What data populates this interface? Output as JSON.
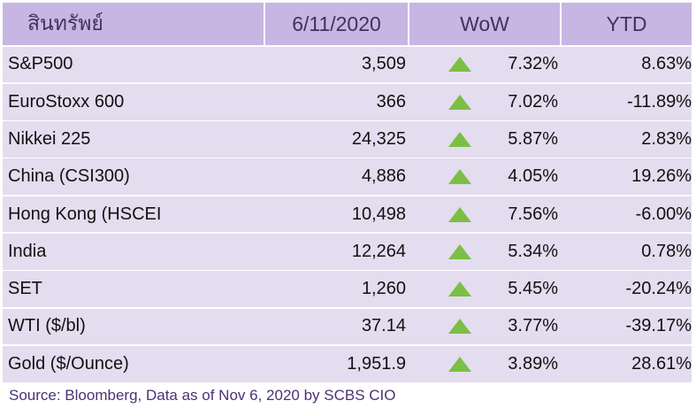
{
  "header": {
    "asset": "สินทรัพย์",
    "date": "6/11/2020",
    "wow": "WoW",
    "ytd": "YTD"
  },
  "rows": [
    {
      "name": "S&P500",
      "value": "3,509",
      "wow": "7.32%",
      "ytd": "8.63%"
    },
    {
      "name": "EuroStoxx 600",
      "value": "366",
      "wow": "7.02%",
      "ytd": "-11.89%"
    },
    {
      "name": "Nikkei 225",
      "value": "24,325",
      "wow": "5.87%",
      "ytd": "2.83%"
    },
    {
      "name": "China (CSI300)",
      "value": "4,886",
      "wow": "4.05%",
      "ytd": "19.26%"
    },
    {
      "name": "Hong Kong (HSCEI",
      "value": "10,498",
      "wow": "7.56%",
      "ytd": "-6.00%"
    },
    {
      "name": "India",
      "value": "12,264",
      "wow": "5.34%",
      "ytd": "0.78%"
    },
    {
      "name": "SET",
      "value": "1,260",
      "wow": "5.45%",
      "ytd": "-20.24%"
    },
    {
      "name": "WTI ($/bl)",
      "value": "37.14",
      "wow": "3.77%",
      "ytd": "-39.17%"
    },
    {
      "name": "Gold ($/Ounce)",
      "value": "1,951.9",
      "wow": "3.89%",
      "ytd": "28.61%"
    }
  ],
  "icons": {
    "trend": "up-triangle-icon",
    "trend_color": "#7bbf45"
  },
  "colors": {
    "header_bg": "#c8b6e2",
    "row_bg": "#e4dcef",
    "header_text": "#43305f",
    "source_text": "#4b3275"
  },
  "source": "Source: Bloomberg, Data as of Nov 6, 2020 by SCBS CIO"
}
